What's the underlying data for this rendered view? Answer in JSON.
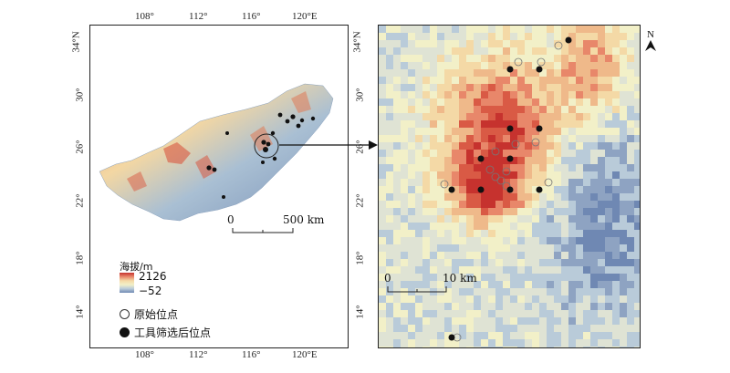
{
  "left_map": {
    "lon_labels": [
      "108°",
      "112°",
      "116°",
      "120°E"
    ],
    "lat_labels": [
      "34°N",
      "30°",
      "26°",
      "22°",
      "18°",
      "14°"
    ],
    "scale": {
      "zero": "0",
      "end": "500 km"
    }
  },
  "right_map": {
    "lat_labels": [
      "34°N",
      "30°",
      "26°",
      "22°",
      "18°",
      "14°"
    ],
    "scale": {
      "zero": "0",
      "end": "10 km"
    },
    "north_label": "N"
  },
  "legend": {
    "title": "海拔/m",
    "max": "2126",
    "min": "−52",
    "original_points_label": "原始位点",
    "filtered_points_label": "工具筛选后位点"
  },
  "colors": {
    "high": "#c6322e",
    "mid": "#f4d9a6",
    "low": "#6f88b3"
  }
}
